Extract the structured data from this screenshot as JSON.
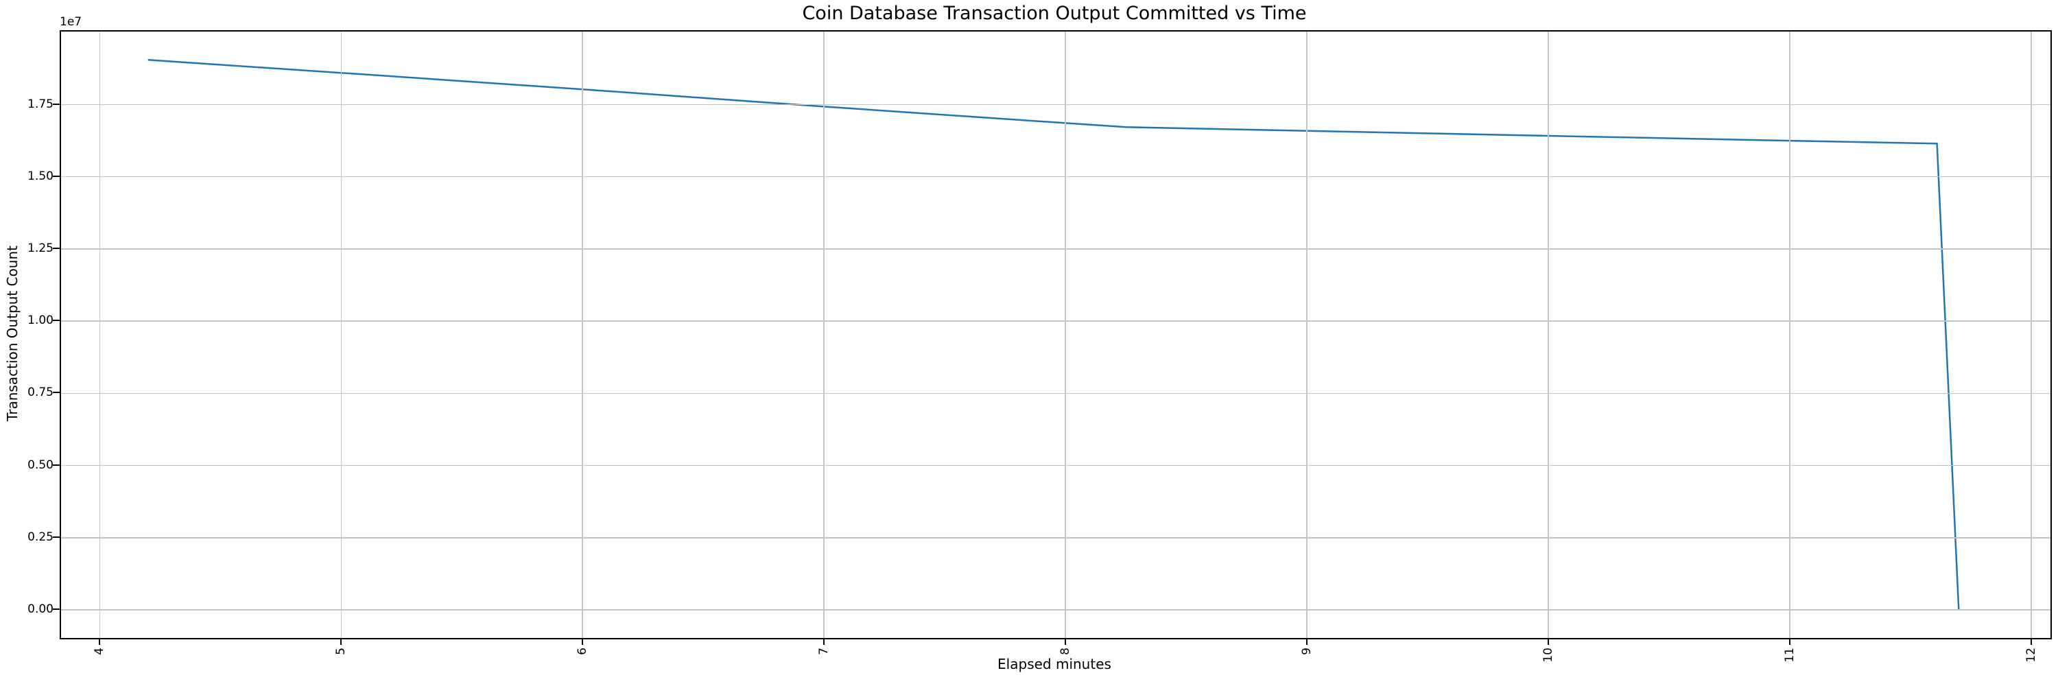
{
  "chart_data": {
    "type": "line",
    "title": "Coin Database Transaction Output Committed vs Time",
    "xlabel": "Elapsed minutes",
    "ylabel": "Transaction Output Count",
    "y_offset_label": "1e7",
    "x": [
      4.2,
      5,
      6,
      7,
      8,
      8.25,
      9,
      10,
      11,
      11.61,
      11.7
    ],
    "y": [
      19050000,
      18600000,
      18030000,
      17430000,
      16860000,
      16720000,
      16590000,
      16420000,
      16250000,
      16150000,
      0
    ],
    "xticks": [
      4,
      5,
      6,
      7,
      8,
      9,
      10,
      11,
      12
    ],
    "xtick_labels": [
      "4",
      "5",
      "6",
      "7",
      "8",
      "9",
      "10",
      "11",
      "12"
    ],
    "ytick_values": [
      0,
      2500000,
      5000000,
      7500000,
      10000000,
      12500000,
      15000000,
      17500000
    ],
    "ytick_labels": [
      "0.00",
      "0.25",
      "0.50",
      "0.75",
      "1.00",
      "1.25",
      "1.50",
      "1.75"
    ],
    "xlim": [
      3.84,
      12.08
    ],
    "ylim": [
      -970000,
      20030000
    ],
    "grid": true,
    "x_tick_rotation": 90,
    "legend": "none",
    "line_color": "#1f77b4",
    "grid_color": "#c4c4c4",
    "spine_color": "#000000",
    "background_color": "#ffffff"
  }
}
